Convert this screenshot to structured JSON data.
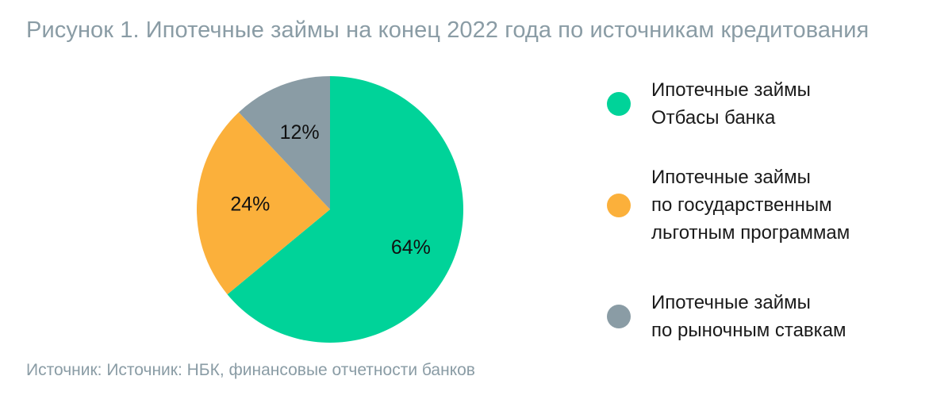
{
  "title": "Рисунок 1. Ипотечные займы на конец 2022 года по источникам кредитования",
  "source": "Источник: Источник: НБК, финансовые отчетности банков",
  "chart_data": {
    "type": "pie",
    "slices": [
      {
        "label": "Ипотечные займы\nОтбасы банка",
        "value": 64,
        "value_label": "64%",
        "color": "#00d399"
      },
      {
        "label": "Ипотечные займы\nпо государственным\nльготным программам",
        "value": 24,
        "value_label": "24%",
        "color": "#fbb03b"
      },
      {
        "label": "Ипотечные займы\nпо рыночным ставкам",
        "value": 12,
        "value_label": "12%",
        "color": "#8a9ca5"
      }
    ],
    "legend": "right"
  }
}
